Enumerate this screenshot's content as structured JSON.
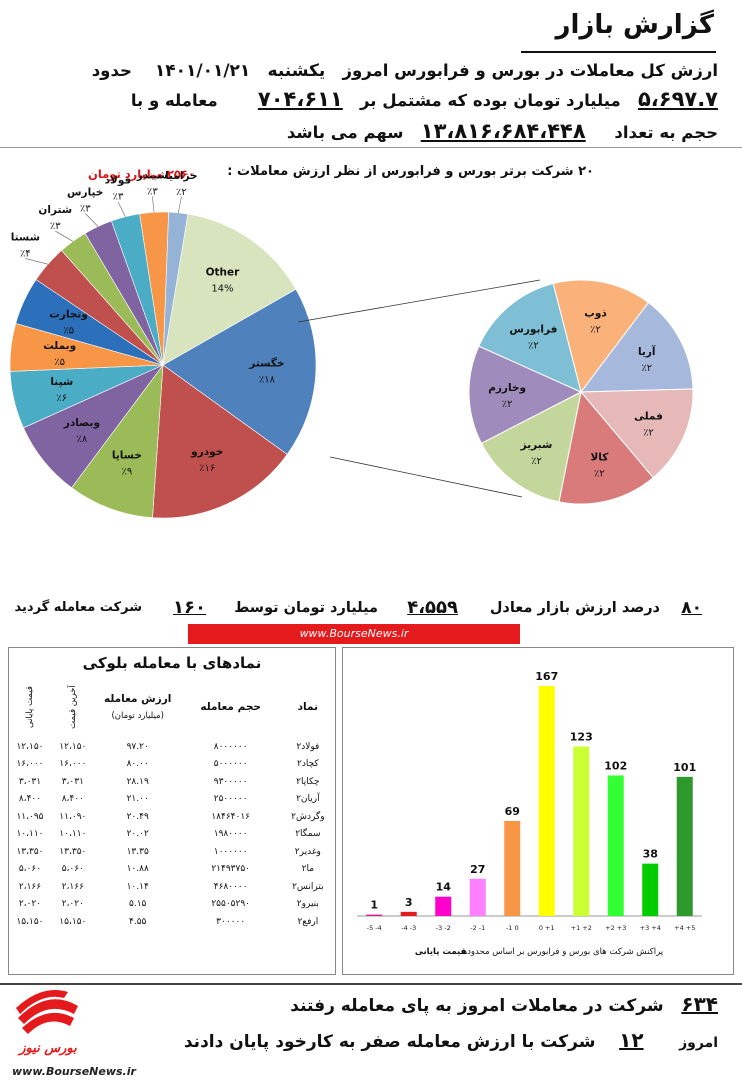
{
  "header": {
    "title": "گزارش بازار",
    "line1": {
      "a": "ارزش کل  معاملات در  بورس و فرابورس  امروز",
      "day": "یکشنبه",
      "date": "۱۴۰۱/۰۱/۲۱",
      "tail": "حدود"
    },
    "line2": {
      "value": "۵،۶۹۷.۷",
      "a": "میلیارد تومان بوده که مشتمل بر",
      "count": "۷۰۴،۶۱۱",
      "tail": "معامله و با"
    },
    "line3": {
      "a": "حجم به تعداد",
      "volume": "۱۳،۸۱۶،۶۸۴،۴۴۸",
      "tail": "سهم  می باشد"
    }
  },
  "pie": {
    "title": "۲۰ شرکت برتر بورس و فرابورس از نظر ارزش معاملات :",
    "total": "۲۵۶۰ میلیارد تومان"
  },
  "mid": {
    "a": "درصد ارزش بازار معادل",
    "pct": "۸۰",
    "value": "۴،۵۵۹",
    "b": "میلیارد تومان توسط",
    "count": "۱۶۰",
    "c": "شرکت معامله گردید"
  },
  "site": "www.BourseNews.ir",
  "table": {
    "title": "نمادهای با معامله بلوکی",
    "headers": {
      "symbol": "نماد",
      "volume": "حجم معامله",
      "value": "ارزش معامله",
      "value_unit": "(میلیارد تومان)",
      "last": "آخرین قیمت",
      "final": "قیمت پایانی"
    },
    "rows": [
      {
        "symbol": "فولاد۲",
        "volume": "۸۰۰۰۰۰۰",
        "value": "۹۷.۲۰",
        "last": "۱۲،۱۵۰",
        "final": "۱۲،۱۵۰"
      },
      {
        "symbol": "کچاد۲",
        "volume": "۵۰۰۰۰۰۰",
        "value": "۸۰.۰۰",
        "last": "۱۶،۰۰۰",
        "final": "۱۶،۰۰۰"
      },
      {
        "symbol": "چکاپا۲",
        "volume": "۹۳۰۰۰۰۰",
        "value": "۲۸.۱۹",
        "last": "۳،۰۳۱",
        "final": "۳،۰۳۱"
      },
      {
        "symbol": "آریان۲",
        "volume": "۲۵۰۰۰۰۰",
        "value": "۲۱.۰۰",
        "last": "۸،۴۰۰",
        "final": "۸،۴۰۰"
      },
      {
        "symbol": "وگردش۲",
        "volume": "۱۸۴۶۴۰۱۶",
        "value": "۲۰.۴۹",
        "last": "۱۱،۰۹۰",
        "final": "۱۱،۰۹۵"
      },
      {
        "symbol": "سمگا۲",
        "volume": "۱۹۸۰۰۰۰",
        "value": "۲۰.۰۲",
        "last": "۱۰،۱۱۰",
        "final": "۱۰،۱۱۰"
      },
      {
        "symbol": "وغدیر۲",
        "volume": "۱۰۰۰۰۰۰",
        "value": "۱۳.۳۵",
        "last": "۱۳،۳۵۰",
        "final": "۱۳،۳۵۰"
      },
      {
        "symbol": "ما۲",
        "volume": "۲۱۴۹۳۷۵۰",
        "value": "۱۰.۸۸",
        "last": "۵،۰۶۰",
        "final": "۵،۰۶۰"
      },
      {
        "symbol": "بترانس۲",
        "volume": "۴۶۸۰۰۰۰",
        "value": "۱۰.۱۴",
        "last": "۲،۱۶۶",
        "final": "۲،۱۶۶"
      },
      {
        "symbol": "بنیرو۲",
        "volume": "۲۵۵۰۵۲۹۰",
        "value": "۵.۱۵",
        "last": "۲،۰۲۰",
        "final": "۲،۰۲۰"
      },
      {
        "symbol": "ارفع۲",
        "volume": "۳۰۰۰۰۰",
        "value": "۴.۵۵",
        "last": "۱۵،۱۵۰",
        "final": "۱۵،۱۵۰"
      }
    ]
  },
  "bottom": {
    "count1": "۶۳۴",
    "a": "شرکت در معاملات امروز به پای معامله رفتند",
    "today": "امروز",
    "count2": "۱۲",
    "b": "شرکت با ارزش معامله صفر به کارخود  پایان دادند",
    "logo_text": "بورس نیوز"
  },
  "chart_data": [
    {
      "type": "pie",
      "title": "۲۰ شرکت برتر بورس و فرابورس از نظر ارزش معاملات :",
      "subtitle": "۲۵۶۰ میلیارد تومان",
      "slices": [
        {
          "label": "خگستر",
          "value": 18,
          "text": "٪۱۸",
          "color": "#4f81bd"
        },
        {
          "label": "خودرو",
          "value": 16,
          "text": "٪۱۶",
          "color": "#c0504d"
        },
        {
          "label": "خساپا",
          "value": 9,
          "text": "٪۹",
          "color": "#9bbb59"
        },
        {
          "label": "وبصادر",
          "value": 8,
          "text": "٪۸",
          "color": "#8064a2"
        },
        {
          "label": "شپنا",
          "value": 6,
          "text": "٪۶",
          "color": "#4bacc6"
        },
        {
          "label": "وبملت",
          "value": 5,
          "text": "٪۵",
          "color": "#f79646"
        },
        {
          "label": "وتجارت",
          "value": 5,
          "text": "٪۵",
          "color": "#2c6fbb"
        },
        {
          "label": "شستا",
          "value": 4,
          "text": "٪۴",
          "color": "#c0504d"
        },
        {
          "label": "شتران",
          "value": 3,
          "text": "٪۳",
          "color": "#9bbb59"
        },
        {
          "label": "خپارس",
          "value": 3,
          "text": "٪۳",
          "color": "#8064a2"
        },
        {
          "label": "فولاد",
          "value": 3,
          "text": "٪۳",
          "color": "#4bacc6"
        },
        {
          "label": "شبندر",
          "value": 3,
          "text": "٪۳",
          "color": "#f79646"
        },
        {
          "label": "خزامیا",
          "value": 2,
          "text": "٪۲",
          "color": "#95b3d7"
        },
        {
          "label": "Other",
          "value": 14,
          "text": "14%",
          "color": "#d7e4bd"
        }
      ],
      "sub_pie": [
        {
          "label": "ذوب",
          "value": 2,
          "text": "٪۲",
          "color": "#fab27a"
        },
        {
          "label": "آریا",
          "value": 2,
          "text": "٪۲",
          "color": "#a6b8dc"
        },
        {
          "label": "فملی",
          "value": 2,
          "text": "٪۲",
          "color": "#e6b9b8"
        },
        {
          "label": "کالا",
          "value": 2,
          "text": "٪۲",
          "color": "#d97b7b"
        },
        {
          "label": "شبریز",
          "value": 2,
          "text": "٪۲",
          "color": "#c3d69b"
        },
        {
          "label": "وخارزم",
          "value": 2,
          "text": "٪۲",
          "color": "#a08cbc"
        },
        {
          "label": "فرابورس",
          "value": 2,
          "text": "٪۲",
          "color": "#7fbfd6"
        }
      ]
    },
    {
      "type": "bar",
      "xlabel": "پراکنش شرکت های بورس و فرابورس  بر اساس  محدوده",
      "xlabel_bold": "قیمت پایانی",
      "categories": [
        "-5  -4",
        "-4  -3",
        "-3  -2",
        "-2  -1",
        "-1  0",
        "0  +1",
        "+1  +2",
        "+2  +3",
        "+3  +4",
        "+4  +5"
      ],
      "values": [
        1,
        3,
        14,
        27,
        69,
        167,
        123,
        102,
        38,
        101
      ],
      "colors": [
        "#e8178a",
        "#e41a1c",
        "#ff00cc",
        "#ff80ff",
        "#f79646",
        "#ffff00",
        "#ccff33",
        "#33ff33",
        "#00cc00",
        "#2e9a2e"
      ],
      "ylim": [
        0,
        180
      ]
    }
  ]
}
